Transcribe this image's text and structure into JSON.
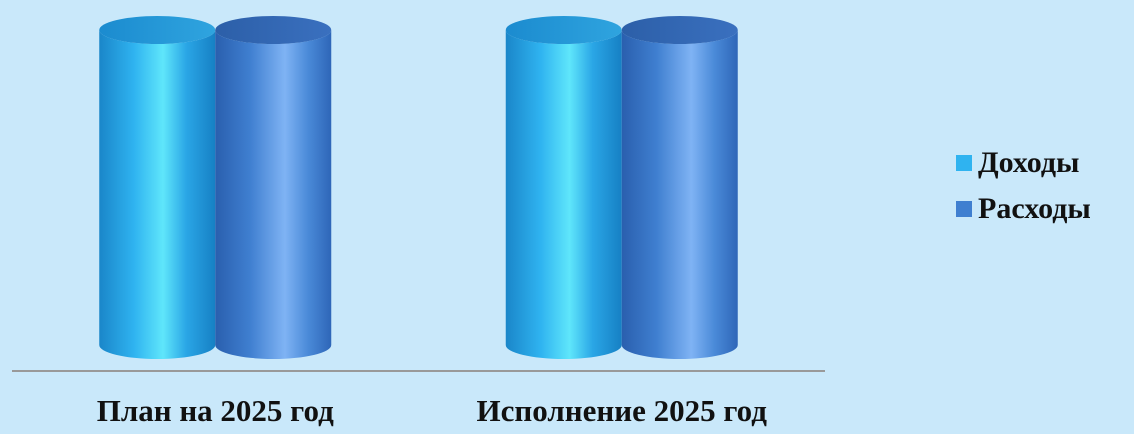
{
  "chart_data": {
    "type": "bar",
    "style": "3d-cylinder",
    "title": "",
    "xlabel": "",
    "ylabel": "",
    "categories": [
      "План на 2025 год",
      "Исполнение 2025 год"
    ],
    "series": [
      {
        "name": "Доходы",
        "values": [
          1,
          1
        ],
        "color": "#2fb3f0"
      },
      {
        "name": "Расходы",
        "values": [
          1,
          1
        ],
        "color": "#3f7fd0"
      }
    ],
    "ylim": [
      0,
      1
    ],
    "grid": false,
    "legend_position": "right",
    "background": "#c9e8fa",
    "baseline_color": "#999999"
  }
}
